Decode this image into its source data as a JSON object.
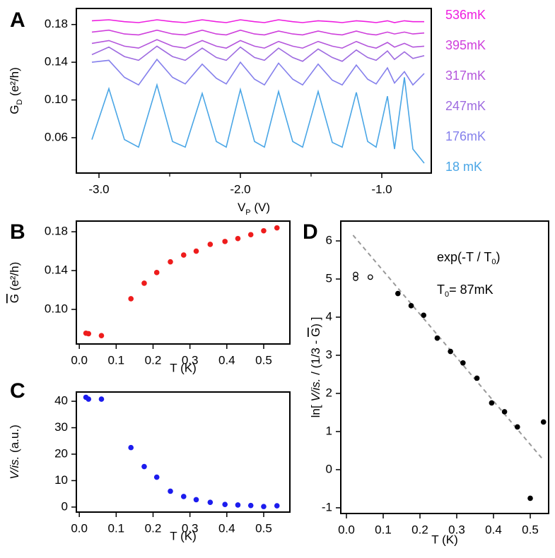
{
  "chart_data": [
    {
      "type": "line",
      "panel": "A",
      "xlabel": [
        "V",
        "P",
        " (V)"
      ],
      "ylabel": [
        "G",
        "D",
        " (e²/h)"
      ],
      "xlim": [
        -3.16,
        -0.65
      ],
      "xticks": [
        {
          "value": -3,
          "label": "-3.0"
        },
        {
          "value": -2,
          "label": "-2.0"
        },
        {
          "value": -1,
          "label": "-1.0"
        }
      ],
      "xminorticks": [
        -2.5,
        -1.5
      ],
      "ylim": [
        0.0225,
        0.197
      ],
      "yticks": [
        0.18,
        0.14,
        {
          "value": 0.1,
          "label": "0.10"
        },
        0.06
      ],
      "x": [
        -3.05,
        -2.93,
        -2.82,
        -2.72,
        -2.59,
        -2.48,
        -2.39,
        -2.27,
        -2.17,
        -2.1,
        -2.0,
        -1.9,
        -1.83,
        -1.73,
        -1.63,
        -1.56,
        -1.45,
        -1.35,
        -1.28,
        -1.18,
        -1.1,
        -1.04,
        -0.96,
        -0.91,
        -0.84,
        -0.78,
        -0.7
      ],
      "series": [
        {
          "name": "536mK",
          "color": "#ee1ee0",
          "values": [
            0.184,
            0.185,
            0.183,
            0.182,
            0.185,
            0.183,
            0.182,
            0.185,
            0.183,
            0.182,
            0.185,
            0.183,
            0.182,
            0.185,
            0.183,
            0.182,
            0.184,
            0.183,
            0.182,
            0.184,
            0.183,
            0.182,
            0.184,
            0.182,
            0.184,
            0.183,
            0.183
          ]
        },
        {
          "name": "395mK",
          "color": "#cf3fdc",
          "values": [
            0.172,
            0.174,
            0.17,
            0.169,
            0.174,
            0.17,
            0.169,
            0.174,
            0.17,
            0.169,
            0.174,
            0.17,
            0.169,
            0.173,
            0.17,
            0.169,
            0.173,
            0.17,
            0.169,
            0.173,
            0.17,
            0.169,
            0.172,
            0.17,
            0.172,
            0.17,
            0.171
          ]
        },
        {
          "name": "317mK",
          "color": "#b456dc",
          "values": [
            0.16,
            0.163,
            0.157,
            0.155,
            0.164,
            0.157,
            0.155,
            0.163,
            0.157,
            0.155,
            0.163,
            0.157,
            0.155,
            0.162,
            0.157,
            0.155,
            0.162,
            0.157,
            0.155,
            0.162,
            0.157,
            0.155,
            0.161,
            0.156,
            0.16,
            0.156,
            0.157
          ]
        },
        {
          "name": "247mK",
          "color": "#9e6be0",
          "values": [
            0.148,
            0.156,
            0.146,
            0.142,
            0.157,
            0.146,
            0.142,
            0.155,
            0.145,
            0.142,
            0.156,
            0.145,
            0.142,
            0.155,
            0.145,
            0.141,
            0.154,
            0.145,
            0.141,
            0.153,
            0.145,
            0.142,
            0.152,
            0.143,
            0.151,
            0.144,
            0.147
          ]
        },
        {
          "name": "176mK",
          "color": "#8580ec",
          "values": [
            0.14,
            0.142,
            0.124,
            0.116,
            0.143,
            0.124,
            0.117,
            0.138,
            0.123,
            0.117,
            0.14,
            0.122,
            0.116,
            0.139,
            0.122,
            0.116,
            0.138,
            0.121,
            0.116,
            0.137,
            0.122,
            0.117,
            0.134,
            0.118,
            0.13,
            0.116,
            0.128
          ]
        },
        {
          "name": "18 mK",
          "color": "#4aa6e6",
          "values": [
            0.058,
            0.112,
            0.058,
            0.05,
            0.116,
            0.056,
            0.05,
            0.107,
            0.056,
            0.05,
            0.111,
            0.056,
            0.05,
            0.109,
            0.056,
            0.05,
            0.109,
            0.055,
            0.05,
            0.108,
            0.056,
            0.05,
            0.104,
            0.048,
            0.124,
            0.048,
            0.033
          ]
        }
      ]
    },
    {
      "type": "scatter",
      "panel": "B",
      "xlabel": "T (K)",
      "ylabel": [
        "G",
        " (e²/h)"
      ],
      "color": "#ee1c1c",
      "xlim": [
        -0.008,
        0.571
      ],
      "xticks": [
        {
          "value": 0,
          "label": "0.0"
        },
        0.1,
        0.2,
        0.3,
        0.4,
        0.5
      ],
      "ylim": [
        0.0644,
        0.191
      ],
      "yticks": [
        0.18,
        0.14,
        {
          "value": 0.1,
          "label": "0.10"
        }
      ],
      "x": [
        0.018,
        0.025,
        0.06,
        0.14,
        0.176,
        0.21,
        0.247,
        0.283,
        0.317,
        0.355,
        0.395,
        0.43,
        0.465,
        0.5,
        0.536
      ],
      "values": [
        0.0755,
        0.075,
        0.073,
        0.111,
        0.127,
        0.138,
        0.149,
        0.156,
        0.16,
        0.167,
        0.17,
        0.173,
        0.177,
        0.181,
        0.184
      ]
    },
    {
      "type": "scatter",
      "panel": "C",
      "xlabel": "T (K)",
      "ylabel": [
        "V/is.",
        " (a.u.)"
      ],
      "color": "#1c1cee",
      "xlim": [
        -0.008,
        0.571
      ],
      "xticks": [
        {
          "value": 0,
          "label": "0.0"
        },
        0.1,
        0.2,
        0.3,
        0.4,
        0.5
      ],
      "ylim": [
        -1.9,
        43.5
      ],
      "yticks": [
        0,
        10,
        20,
        30,
        40
      ],
      "x": [
        0.018,
        0.025,
        0.06,
        0.14,
        0.176,
        0.21,
        0.247,
        0.283,
        0.317,
        0.355,
        0.395,
        0.43,
        0.465,
        0.5,
        0.536
      ],
      "values": [
        41.5,
        40.8,
        40.8,
        22.5,
        15.3,
        11.3,
        6,
        4,
        2.8,
        1.8,
        1,
        0.8,
        0.6,
        0.2,
        0.5
      ]
    },
    {
      "type": "scatter",
      "panel": "D",
      "xlabel": "T (K)",
      "ylabel": [
        "ln[ ",
        "V/is.",
        " / (1/3 - ",
        "G",
        ") ]"
      ],
      "annotations": [
        [
          "exp(-T / T",
          "0",
          ")"
        ],
        [
          "T",
          "0",
          "= 87mK"
        ]
      ],
      "xlim": [
        -0.0154,
        0.55
      ],
      "xticks": [
        {
          "value": 0,
          "label": "0.0"
        },
        0.1,
        0.2,
        0.3,
        0.4,
        0.5
      ],
      "ylim": [
        -1.15,
        6.52
      ],
      "yticks": [
        -1,
        0,
        1,
        2,
        3,
        4,
        5,
        6
      ],
      "series": [
        {
          "marker": "open",
          "color": "#000000",
          "x": [
            0.025,
            0.025,
            0.065
          ],
          "values": [
            5.12,
            5.02,
            5.05
          ]
        },
        {
          "marker": "filled",
          "color": "#000000",
          "x": [
            0.14,
            0.176,
            0.21,
            0.247,
            0.283,
            0.317,
            0.355,
            0.395,
            0.43,
            0.465,
            0.5,
            0.536
          ],
          "values": [
            4.62,
            4.3,
            4.05,
            3.45,
            3.1,
            2.8,
            2.4,
            1.75,
            1.52,
            1.12,
            -0.75,
            1.25
          ]
        }
      ],
      "fit_line": {
        "color": "#999999",
        "dashed": true,
        "x": [
          0.018,
          0.536
        ],
        "values": [
          6.15,
          0.25
        ]
      }
    }
  ]
}
